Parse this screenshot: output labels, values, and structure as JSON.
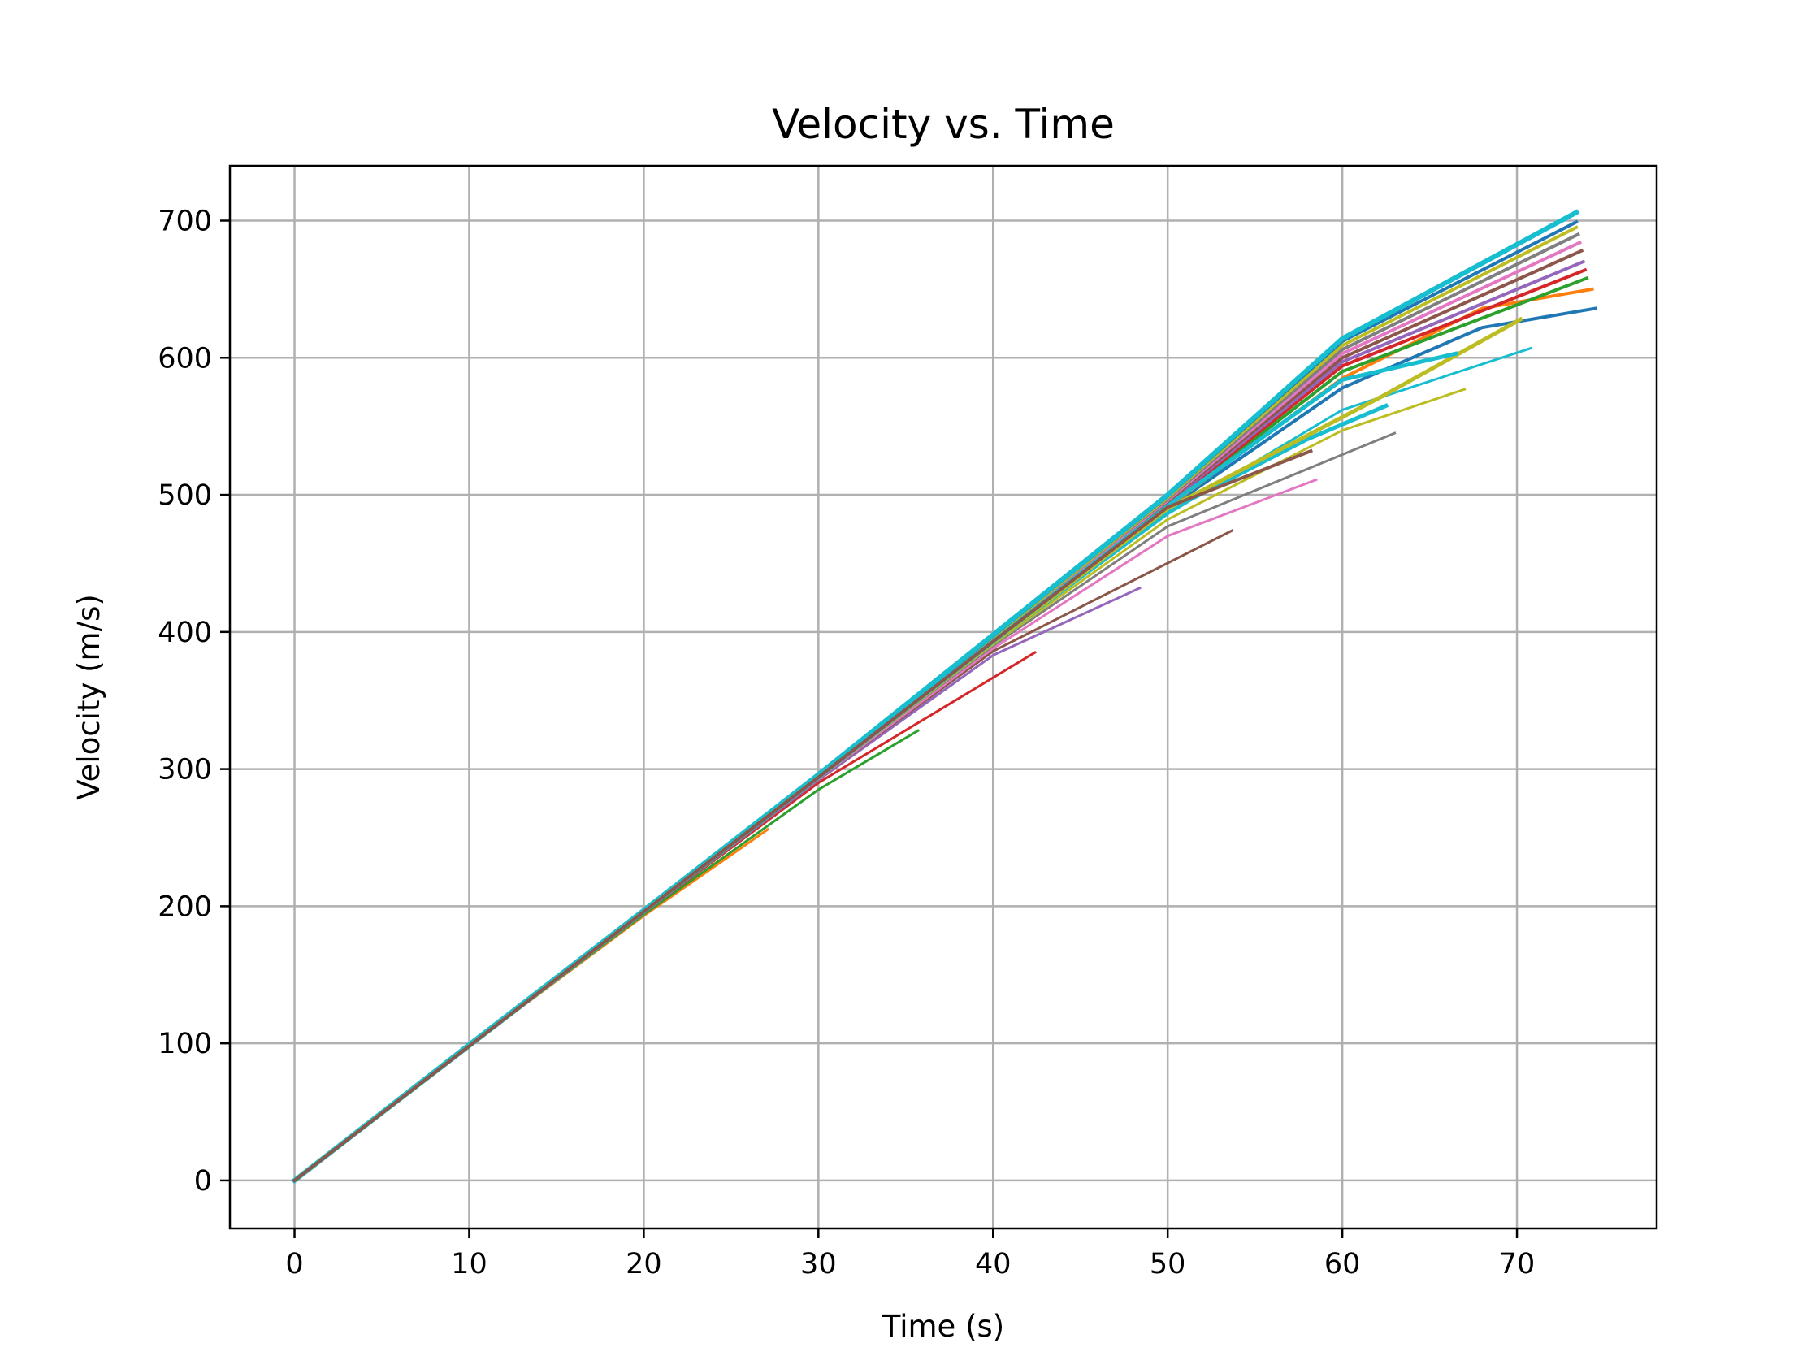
{
  "chart_data": {
    "type": "line",
    "title": "Velocity vs. Time",
    "xlabel": "Time (s)",
    "ylabel": "Velocity (m/s)",
    "xlim": [
      -3.7,
      78
    ],
    "ylim": [
      -35,
      740
    ],
    "xticks": [
      0,
      10,
      20,
      30,
      40,
      50,
      60,
      70
    ],
    "yticks": [
      0,
      100,
      200,
      300,
      400,
      500,
      600,
      700
    ],
    "grid": true,
    "legend": "none",
    "series": [
      {
        "color": "#ff7f0e",
        "width": 3,
        "points": [
          [
            0,
            0
          ],
          [
            10,
            98
          ],
          [
            20,
            193
          ],
          [
            27.1,
            256
          ]
        ]
      },
      {
        "color": "#2ca02c",
        "width": 3,
        "points": [
          [
            0,
            0
          ],
          [
            10,
            98
          ],
          [
            20,
            194
          ],
          [
            30,
            285
          ],
          [
            35.7,
            328
          ]
        ]
      },
      {
        "color": "#d62728",
        "width": 3,
        "points": [
          [
            0,
            0
          ],
          [
            10,
            98
          ],
          [
            20,
            195
          ],
          [
            30,
            290
          ],
          [
            42.4,
            385
          ]
        ]
      },
      {
        "color": "#9467bd",
        "width": 3,
        "points": [
          [
            0,
            0
          ],
          [
            10,
            98
          ],
          [
            20,
            195
          ],
          [
            30,
            292
          ],
          [
            40,
            383
          ],
          [
            48.4,
            432
          ]
        ]
      },
      {
        "color": "#8c564b",
        "width": 3,
        "points": [
          [
            0,
            0
          ],
          [
            10,
            98
          ],
          [
            20,
            195
          ],
          [
            30,
            293
          ],
          [
            40,
            386
          ],
          [
            53.7,
            474
          ]
        ]
      },
      {
        "color": "#e377c2",
        "width": 3,
        "points": [
          [
            0,
            0
          ],
          [
            10,
            98
          ],
          [
            20,
            196
          ],
          [
            30,
            293
          ],
          [
            40,
            388
          ],
          [
            50,
            470
          ],
          [
            58.5,
            511
          ]
        ]
      },
      {
        "color": "#7f7f7f",
        "width": 3,
        "points": [
          [
            0,
            0
          ],
          [
            10,
            98
          ],
          [
            20,
            196
          ],
          [
            30,
            294
          ],
          [
            40,
            390
          ],
          [
            50,
            477
          ],
          [
            63,
            545
          ]
        ]
      },
      {
        "color": "#bcbd22",
        "width": 3,
        "points": [
          [
            0,
            0
          ],
          [
            10,
            98
          ],
          [
            20,
            196
          ],
          [
            30,
            294
          ],
          [
            40,
            391
          ],
          [
            50,
            482
          ],
          [
            60,
            547
          ],
          [
            67,
            577
          ]
        ]
      },
      {
        "color": "#17becf",
        "width": 3,
        "points": [
          [
            0,
            0
          ],
          [
            10,
            98
          ],
          [
            20,
            196
          ],
          [
            30,
            294
          ],
          [
            40,
            392
          ],
          [
            50,
            486
          ],
          [
            60,
            562
          ],
          [
            70.8,
            607
          ]
        ]
      },
      {
        "color": "#1f77b4",
        "width": 4,
        "points": [
          [
            0,
            0
          ],
          [
            10,
            98
          ],
          [
            20,
            196
          ],
          [
            30,
            294
          ],
          [
            40,
            393
          ],
          [
            50,
            490
          ],
          [
            60,
            578
          ],
          [
            68,
            622
          ],
          [
            74.5,
            636
          ]
        ]
      },
      {
        "color": "#ff7f0e",
        "width": 4,
        "points": [
          [
            0,
            0
          ],
          [
            10,
            98
          ],
          [
            20,
            196
          ],
          [
            30,
            294
          ],
          [
            40,
            393
          ],
          [
            50,
            491
          ],
          [
            60,
            585
          ],
          [
            68,
            636
          ],
          [
            74.3,
            650
          ]
        ]
      },
      {
        "color": "#2ca02c",
        "width": 4,
        "points": [
          [
            0,
            0
          ],
          [
            10,
            98
          ],
          [
            20,
            196
          ],
          [
            30,
            294
          ],
          [
            40,
            393
          ],
          [
            50,
            492
          ],
          [
            60,
            590
          ],
          [
            74,
            658
          ]
        ]
      },
      {
        "color": "#d62728",
        "width": 4,
        "points": [
          [
            0,
            0
          ],
          [
            10,
            98
          ],
          [
            20,
            196
          ],
          [
            30,
            294
          ],
          [
            40,
            393
          ],
          [
            50,
            493
          ],
          [
            60,
            594
          ],
          [
            73.9,
            664
          ]
        ]
      },
      {
        "color": "#9467bd",
        "width": 4,
        "points": [
          [
            0,
            0
          ],
          [
            10,
            98
          ],
          [
            20,
            196
          ],
          [
            30,
            295
          ],
          [
            40,
            394
          ],
          [
            50,
            494
          ],
          [
            60,
            597
          ],
          [
            73.8,
            670
          ]
        ]
      },
      {
        "color": "#8c564b",
        "width": 4,
        "points": [
          [
            0,
            0
          ],
          [
            10,
            98
          ],
          [
            20,
            196
          ],
          [
            30,
            295
          ],
          [
            40,
            395
          ],
          [
            50,
            495
          ],
          [
            60,
            600
          ],
          [
            73.7,
            678
          ]
        ]
      },
      {
        "color": "#e377c2",
        "width": 4,
        "points": [
          [
            0,
            0
          ],
          [
            10,
            98
          ],
          [
            20,
            196
          ],
          [
            30,
            295
          ],
          [
            40,
            395
          ],
          [
            50,
            496
          ],
          [
            60,
            603
          ],
          [
            73.6,
            684
          ]
        ]
      },
      {
        "color": "#7f7f7f",
        "width": 4,
        "points": [
          [
            0,
            0
          ],
          [
            10,
            98
          ],
          [
            20,
            196
          ],
          [
            30,
            295
          ],
          [
            40,
            396
          ],
          [
            50,
            497
          ],
          [
            60,
            606
          ],
          [
            73.5,
            690
          ]
        ]
      },
      {
        "color": "#bcbd22",
        "width": 4,
        "points": [
          [
            0,
            0
          ],
          [
            10,
            98
          ],
          [
            20,
            196
          ],
          [
            30,
            295
          ],
          [
            40,
            396
          ],
          [
            50,
            498
          ],
          [
            60,
            609
          ],
          [
            73.4,
            695
          ]
        ]
      },
      {
        "color": "#1f77b4",
        "width": 4,
        "points": [
          [
            0,
            0
          ],
          [
            10,
            98
          ],
          [
            20,
            196
          ],
          [
            30,
            295
          ],
          [
            40,
            397
          ],
          [
            50,
            499
          ],
          [
            60,
            612
          ],
          [
            73.4,
            699
          ]
        ]
      },
      {
        "color": "#17becf",
        "width": 6,
        "points": [
          [
            0,
            0
          ],
          [
            10,
            99
          ],
          [
            20,
            197
          ],
          [
            30,
            296
          ],
          [
            40,
            398
          ],
          [
            50,
            500
          ],
          [
            60,
            614
          ],
          [
            73.4,
            706
          ]
        ]
      },
      {
        "color": "#17becf",
        "width": 5,
        "points": [
          [
            0,
            0
          ],
          [
            10,
            98
          ],
          [
            20,
            196
          ],
          [
            30,
            294
          ],
          [
            40,
            392
          ],
          [
            50,
            488
          ],
          [
            57.9,
            540
          ],
          [
            62.5,
            565
          ]
        ]
      },
      {
        "color": "#bcbd22",
        "width": 5,
        "points": [
          [
            0,
            0
          ],
          [
            10,
            98
          ],
          [
            20,
            196
          ],
          [
            30,
            294
          ],
          [
            40,
            392
          ],
          [
            50,
            490
          ],
          [
            62.3,
            572
          ],
          [
            70.2,
            628
          ]
        ]
      },
      {
        "color": "#17becf",
        "width": 5,
        "points": [
          [
            0,
            0
          ],
          [
            10,
            98
          ],
          [
            20,
            196
          ],
          [
            30,
            294
          ],
          [
            40,
            393
          ],
          [
            50,
            492
          ],
          [
            60,
            584
          ],
          [
            66.5,
            603
          ]
        ]
      },
      {
        "color": "#8c564b",
        "width": 4,
        "points": [
          [
            0,
            0
          ],
          [
            10,
            98
          ],
          [
            20,
            196
          ],
          [
            30,
            294
          ],
          [
            40,
            393
          ],
          [
            50,
            491
          ],
          [
            58.2,
            532
          ]
        ]
      }
    ]
  }
}
